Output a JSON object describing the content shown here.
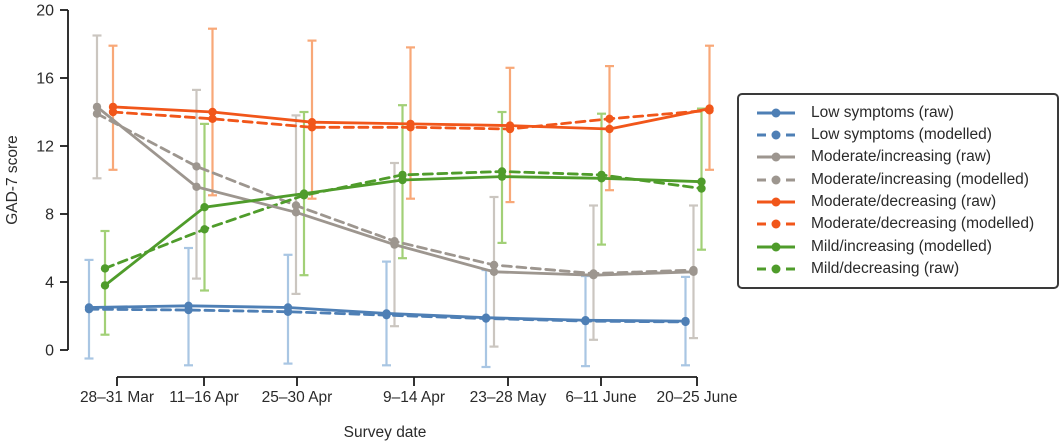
{
  "chart_data": {
    "type": "line",
    "title": "",
    "xlabel": "Survey date",
    "ylabel": "GAD-7 score",
    "ylim": [
      0,
      20
    ],
    "yticks": [
      0,
      4,
      8,
      12,
      16,
      20
    ],
    "grid": false,
    "error_bars": true,
    "legend_position": "right",
    "categories": [
      "28–31 Mar",
      "11–16 Apr",
      "25–30 Apr",
      "9–14 Apr",
      "23–28 May",
      "6–11 June",
      "20–25 June"
    ],
    "series": [
      {
        "name": "Low symptoms (raw)",
        "group": "low-symptoms",
        "style": "solid",
        "color": "#4e7fb5",
        "error_color": "#a9c6e3",
        "values": [
          2.5,
          2.6,
          2.5,
          2.15,
          1.9,
          1.75,
          1.7
        ],
        "err_low": [
          -0.5,
          -0.9,
          -0.8,
          -0.9,
          -1.0,
          -0.95,
          -0.9
        ],
        "err_high": [
          5.3,
          6.0,
          5.6,
          5.2,
          4.7,
          4.35,
          4.3
        ]
      },
      {
        "name": "Low symptoms (modelled)",
        "group": "low-symptoms",
        "style": "dashed",
        "color": "#4e7fb5",
        "values": [
          2.4,
          2.35,
          2.25,
          2.05,
          1.85,
          1.7,
          1.65
        ]
      },
      {
        "name": "Moderate/increasing (raw)",
        "group": "moderate-increasing",
        "style": "solid",
        "color": "#9d968f",
        "error_color": "#cbc6c0",
        "values": [
          14.3,
          9.6,
          8.1,
          6.2,
          4.6,
          4.4,
          4.6
        ],
        "err_low": [
          10.1,
          4.2,
          3.3,
          1.4,
          0.2,
          0.6,
          0.7
        ],
        "err_high": [
          18.5,
          15.3,
          13.8,
          11.0,
          9.0,
          8.5,
          8.5
        ]
      },
      {
        "name": "Moderate/increasing (modelled)",
        "group": "moderate-increasing",
        "style": "dashed",
        "color": "#9d968f",
        "values": [
          13.9,
          10.8,
          8.5,
          6.4,
          5.0,
          4.5,
          4.7
        ]
      },
      {
        "name": "Moderate/decreasing (raw)",
        "group": "moderate-decreasing",
        "style": "solid",
        "color": "#f1561a",
        "error_color": "#f8a878",
        "values": [
          14.3,
          14.0,
          13.4,
          13.3,
          13.2,
          13.0,
          14.2
        ],
        "err_low": [
          10.6,
          9.1,
          8.9,
          8.9,
          8.7,
          9.4,
          10.6
        ],
        "err_high": [
          17.9,
          18.9,
          18.2,
          17.8,
          16.6,
          16.7,
          17.9
        ]
      },
      {
        "name": "Moderate/decreasing (modelled)",
        "group": "moderate-decreasing",
        "style": "dashed",
        "color": "#f1561a",
        "values": [
          14.0,
          13.6,
          13.1,
          13.1,
          13.0,
          13.6,
          14.1
        ]
      },
      {
        "name": "Mild/increasing (modelled)",
        "group": "mild",
        "style": "solid",
        "color": "#4f9c2b",
        "error_color": "#a2d077",
        "values": [
          3.8,
          8.4,
          9.2,
          10.0,
          10.2,
          10.1,
          9.9
        ],
        "err_low": [
          0.9,
          3.5,
          4.4,
          5.4,
          6.3,
          6.2,
          5.9
        ],
        "err_high": [
          7.0,
          13.3,
          14.0,
          14.4,
          14.0,
          13.9,
          14.2
        ]
      },
      {
        "name": "Mild/decreasing (raw)",
        "group": "mild",
        "style": "dashed",
        "color": "#4f9c2b",
        "values": [
          4.8,
          7.1,
          9.1,
          10.3,
          10.5,
          10.3,
          9.5
        ]
      }
    ]
  },
  "colors": {
    "axis": "#1c1c1c",
    "text": "#2a2a2a",
    "legend_border": "#3a3a3a",
    "background": "#ffffff"
  }
}
